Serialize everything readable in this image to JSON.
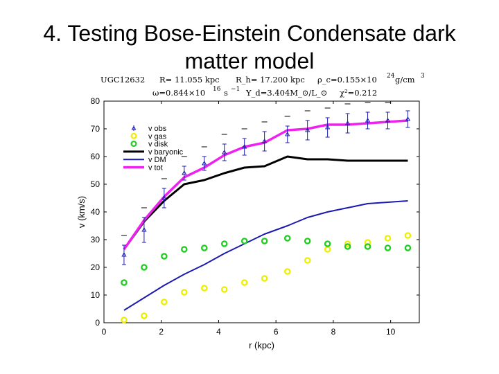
{
  "slide": {
    "title_line1": "4. Testing Bose-Einstein Condensate dark",
    "title_line2": "matter model"
  },
  "params": {
    "line1": [
      "UGC12632",
      "R= 11.055 kpc",
      "R_h= 17.200 kpc",
      "ρ_c=0.155×10",
      "24",
      "g/cm",
      "3"
    ],
    "line2": [
      "ω=0.844×10",
      "16",
      "s",
      "−1",
      "Υ_d=3.404M_⊙/L_⊙",
      "χ²=0.212"
    ]
  },
  "chart_data": {
    "type": "scatter",
    "xlabel": "r (kpc)",
    "ylabel": "v (km/s)",
    "xlim": [
      0,
      11
    ],
    "ylim": [
      0,
      80
    ],
    "x_ticks": [
      "0",
      "2",
      "4",
      "6",
      "8",
      "10"
    ],
    "y_ticks": [
      "0",
      "10",
      "20",
      "30",
      "40",
      "50",
      "60",
      "70",
      "80"
    ],
    "grid": false,
    "legend_position": "top-left",
    "series": [
      {
        "name": "v obs",
        "kind": "errorbar",
        "color": "#1a1ab0",
        "x": [
          0.7,
          1.4,
          2.1,
          2.8,
          3.5,
          4.2,
          4.9,
          5.6,
          6.4,
          7.1,
          7.8,
          8.5,
          9.2,
          9.9,
          10.6
        ],
        "y": [
          24.5,
          33.5,
          45,
          54,
          57.5,
          61.5,
          63.5,
          65.5,
          68,
          69.5,
          70.5,
          72,
          73,
          73,
          73.5
        ],
        "err": [
          3.5,
          4.5,
          3.5,
          2.5,
          2.5,
          3,
          3,
          3.5,
          3,
          3.5,
          3.5,
          3.5,
          3,
          3,
          3
        ]
      },
      {
        "name": "v gas",
        "kind": "markers",
        "color": "#eeee00",
        "x": [
          0.7,
          1.4,
          2.1,
          2.8,
          3.5,
          4.2,
          4.9,
          5.6,
          6.4,
          7.1,
          7.8,
          8.5,
          9.2,
          9.9,
          10.6
        ],
        "y": [
          1,
          2.5,
          7.5,
          11,
          12.5,
          12,
          14.5,
          16,
          18.5,
          22.5,
          26.5,
          28.5,
          29,
          30.5,
          31.5
        ]
      },
      {
        "name": "v disk",
        "kind": "markers",
        "color": "#22cc22",
        "x": [
          0.7,
          1.4,
          2.1,
          2.8,
          3.5,
          4.2,
          4.9,
          5.6,
          6.4,
          7.1,
          7.8,
          8.5,
          9.2,
          9.9,
          10.6
        ],
        "y": [
          14.5,
          20,
          24,
          26.5,
          27,
          28.5,
          29.5,
          29.5,
          30.5,
          29.5,
          28.5,
          27.5,
          27.5,
          27,
          27
        ]
      },
      {
        "name": "v baryonic",
        "kind": "line",
        "color": "#000000",
        "x": [
          0.7,
          1.4,
          2.1,
          2.8,
          3.5,
          4.2,
          4.9,
          5.6,
          6.4,
          7.1,
          7.8,
          8.5,
          9.2,
          9.9,
          10.6
        ],
        "y": [
          26.5,
          36.5,
          44,
          50,
          51.5,
          54,
          56,
          56.5,
          60,
          59,
          59,
          58.5,
          58.5,
          58.5,
          58.5
        ]
      },
      {
        "name": "v DM",
        "kind": "line",
        "color": "#1a1ab0",
        "x": [
          0.7,
          1.4,
          2.1,
          2.8,
          3.5,
          4.2,
          4.9,
          5.6,
          6.4,
          7.1,
          7.8,
          8.5,
          9.2,
          9.9,
          10.6
        ],
        "y": [
          4.5,
          9,
          13.5,
          17.5,
          21,
          25,
          28.5,
          32,
          35,
          38,
          40,
          41.5,
          43,
          43.5,
          44
        ]
      },
      {
        "name": "v tot",
        "kind": "line",
        "color": "#ee22ee",
        "x": [
          0.7,
          1.4,
          2.1,
          2.8,
          3.5,
          4.2,
          4.9,
          5.6,
          6.4,
          7.1,
          7.8,
          8.5,
          9.2,
          9.9,
          10.6
        ],
        "y": [
          26.5,
          37,
          45.5,
          52.5,
          56,
          60.5,
          63.5,
          65,
          69.5,
          70,
          71.5,
          71.5,
          72,
          72.5,
          73
        ]
      }
    ]
  }
}
